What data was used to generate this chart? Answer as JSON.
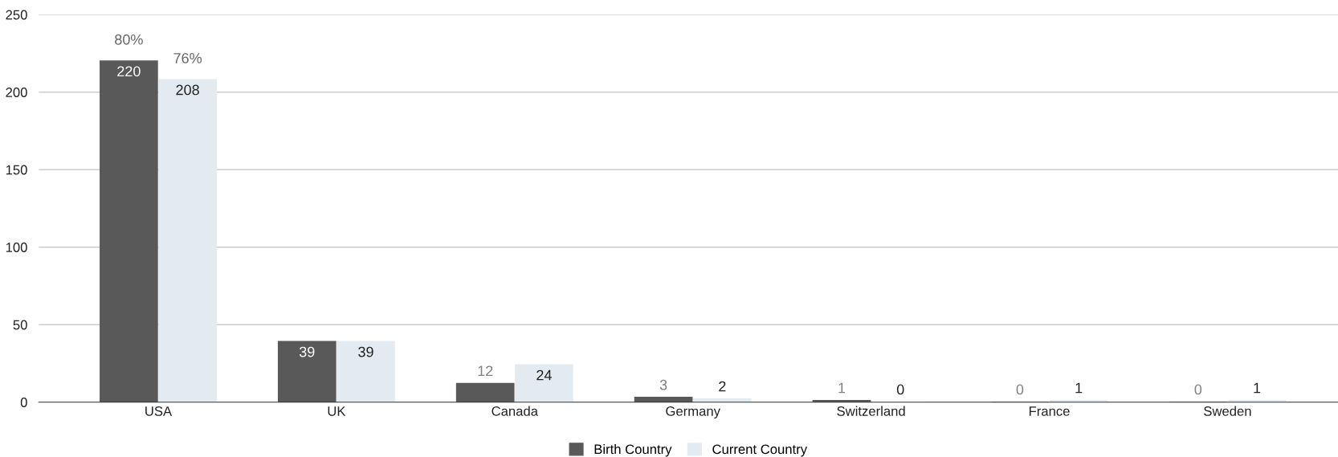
{
  "chart_data": {
    "type": "bar",
    "categories": [
      "USA",
      "UK",
      "Canada",
      "Germany",
      "Switzerland",
      "France",
      "Sweden"
    ],
    "series": [
      {
        "name": "Birth Country",
        "color": "#595959",
        "values": [
          220,
          39,
          12,
          3,
          1,
          0,
          0
        ]
      },
      {
        "name": "Current Country",
        "color": "#e3ebf1",
        "values": [
          208,
          39,
          24,
          2,
          0,
          1,
          1
        ]
      }
    ],
    "ylim": [
      0,
      250
    ],
    "yticks": [
      0,
      50,
      100,
      150,
      200,
      250
    ],
    "grid": "y",
    "legend": "bottom",
    "data_labels": true,
    "annotations": [
      {
        "text": "80%",
        "x": "USA",
        "y": 220
      },
      {
        "text": "76%",
        "x": "USA",
        "y": 208
      }
    ]
  }
}
